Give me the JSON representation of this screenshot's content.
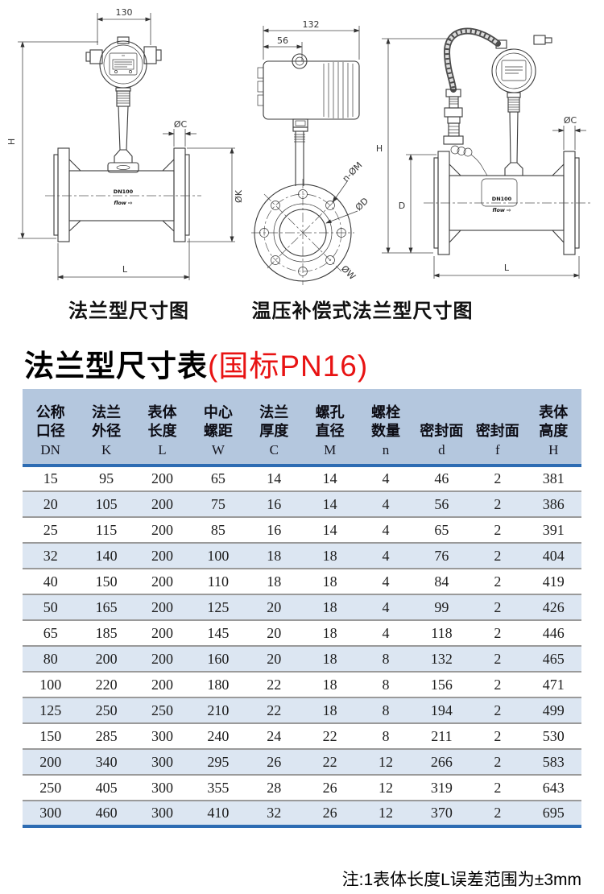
{
  "title": {
    "main": "法兰型尺寸表",
    "highlight": "(国标PN16)"
  },
  "drawings": {
    "left": {
      "caption": "法兰型尺寸图",
      "dims": {
        "top_width": "130",
        "height": "H",
        "flange_thickness": "ØC",
        "flange_diameter": "ØK",
        "length": "L"
      },
      "pipe_label": "DN100",
      "flow_label": "flow ⇨"
    },
    "middle": {
      "dims": {
        "housing_width": "132",
        "housing_offset": "56",
        "bolt_holes": "n-ØM",
        "seal_diameter": "ØD",
        "bolt_circle": "ØW"
      }
    },
    "right": {
      "caption": "温压补偿式法兰型尺寸图",
      "dims": {
        "height": "H",
        "body_height": "D",
        "flange_thickness": "ØC",
        "length": "L"
      },
      "pipe_label": "DN100",
      "flow_label": "flow ⇨"
    }
  },
  "table": {
    "columns": [
      {
        "line1": "公称",
        "line2": "口径",
        "code": "DN"
      },
      {
        "line1": "法兰",
        "line2": "外径",
        "code": "K"
      },
      {
        "line1": "表体",
        "line2": "长度",
        "code": "L"
      },
      {
        "line1": "中心",
        "line2": "螺距",
        "code": "W"
      },
      {
        "line1": "法兰",
        "line2": "厚度",
        "code": "C"
      },
      {
        "line1": "螺孔",
        "line2": "直径",
        "code": "M"
      },
      {
        "line1": "螺栓",
        "line2": "数量",
        "code": "n"
      },
      {
        "line1": "",
        "line2": "密封面",
        "code": "d"
      },
      {
        "line1": "",
        "line2": "密封面",
        "code": "f"
      },
      {
        "line1": "表体",
        "line2": "高度",
        "code": "H"
      }
    ],
    "rows": [
      [
        15,
        95,
        200,
        65,
        14,
        14,
        4,
        46,
        2,
        381
      ],
      [
        20,
        105,
        200,
        75,
        16,
        14,
        4,
        56,
        2,
        386
      ],
      [
        25,
        115,
        200,
        85,
        16,
        14,
        4,
        65,
        2,
        391
      ],
      [
        32,
        140,
        200,
        100,
        18,
        18,
        4,
        76,
        2,
        404
      ],
      [
        40,
        150,
        200,
        110,
        18,
        18,
        4,
        84,
        2,
        419
      ],
      [
        50,
        165,
        200,
        125,
        20,
        18,
        4,
        99,
        2,
        426
      ],
      [
        65,
        185,
        200,
        145,
        20,
        18,
        4,
        118,
        2,
        446
      ],
      [
        80,
        200,
        200,
        160,
        20,
        18,
        8,
        132,
        2,
        465
      ],
      [
        100,
        220,
        200,
        180,
        22,
        18,
        8,
        156,
        2,
        471
      ],
      [
        125,
        250,
        250,
        210,
        22,
        18,
        8,
        194,
        2,
        499
      ],
      [
        150,
        285,
        300,
        240,
        24,
        22,
        8,
        211,
        2,
        530
      ],
      [
        200,
        340,
        300,
        295,
        26,
        22,
        12,
        266,
        2,
        583
      ],
      [
        250,
        405,
        300,
        355,
        28,
        26,
        12,
        319,
        2,
        643
      ],
      [
        300,
        460,
        300,
        410,
        32,
        26,
        12,
        370,
        2,
        695
      ]
    ]
  },
  "note": "注:1表体长度L误差范围为±3mm",
  "colors": {
    "accent_red": "#e81313",
    "table_header_bg": "#b4c7de",
    "table_row_alt_bg": "#dce6f2",
    "table_accent_blue": "#2d6cb3",
    "row_separator": "#9a9a9a"
  }
}
